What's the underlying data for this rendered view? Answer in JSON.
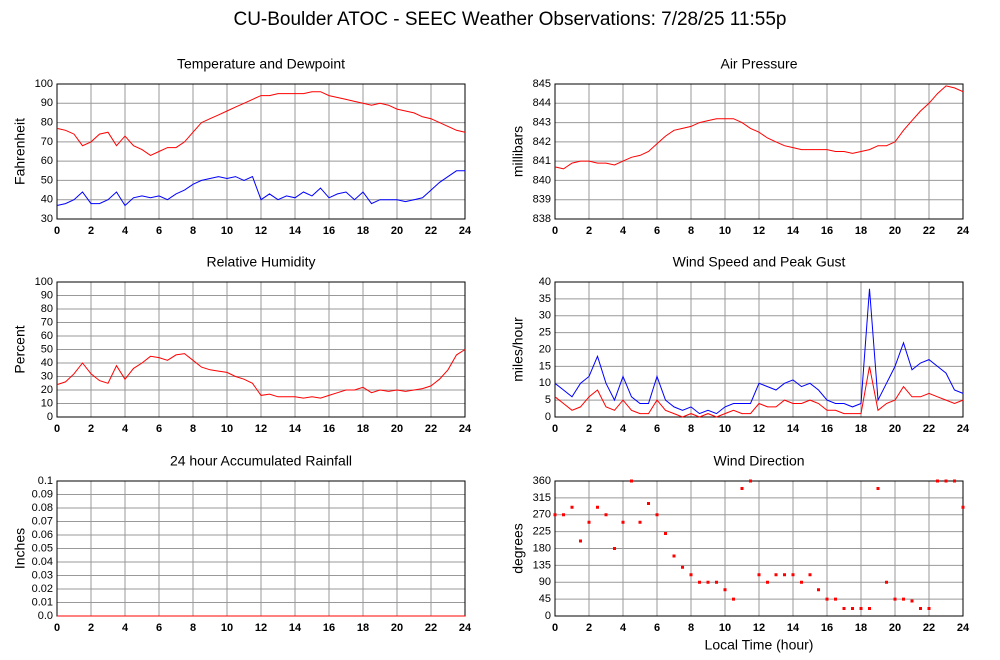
{
  "title": "CU-Boulder ATOC - SEEC Weather Observations: 7/28/25 11:55p",
  "chart_data": [
    {
      "type": "line",
      "title": "Temperature and Dewpoint",
      "ylabel": "Fahrenheit",
      "x": [
        0,
        0.5,
        1,
        1.5,
        2,
        2.5,
        3,
        3.5,
        4,
        4.5,
        5,
        5.5,
        6,
        6.5,
        7,
        7.5,
        8,
        8.5,
        9,
        9.5,
        10,
        10.5,
        11,
        11.5,
        12,
        12.5,
        13,
        13.5,
        14,
        14.5,
        15,
        15.5,
        16,
        16.5,
        17,
        17.5,
        18,
        18.5,
        19,
        19.5,
        20,
        20.5,
        21,
        21.5,
        22,
        22.5,
        23,
        23.5,
        24
      ],
      "xlim": [
        0,
        24
      ],
      "xticks": [
        0,
        2,
        4,
        6,
        8,
        10,
        12,
        14,
        16,
        18,
        20,
        22,
        24
      ],
      "ylim": [
        30,
        100
      ],
      "yticks": [
        30,
        40,
        50,
        60,
        70,
        80,
        90,
        100
      ],
      "grid": true,
      "series": [
        {
          "color": "#ff0000",
          "values": [
            77,
            76,
            74,
            68,
            70,
            74,
            75,
            68,
            73,
            68,
            66,
            63,
            65,
            67,
            67,
            70,
            75,
            80,
            82,
            84,
            86,
            88,
            90,
            92,
            94,
            94,
            95,
            95,
            95,
            95,
            96,
            96,
            94,
            93,
            92,
            91,
            90,
            89,
            90,
            89,
            87,
            86,
            85,
            83,
            82,
            80,
            78,
            76,
            75
          ]
        },
        {
          "color": "#0000ff",
          "values": [
            37,
            38,
            40,
            44,
            38,
            38,
            40,
            44,
            37,
            41,
            42,
            41,
            42,
            40,
            43,
            45,
            48,
            50,
            51,
            52,
            51,
            52,
            50,
            52,
            40,
            43,
            40,
            42,
            41,
            44,
            42,
            46,
            41,
            43,
            44,
            40,
            44,
            38,
            40,
            40,
            40,
            39,
            40,
            41,
            45,
            49,
            52,
            55,
            55
          ]
        }
      ]
    },
    {
      "type": "line",
      "title": "Air Pressure",
      "ylabel": "millibars",
      "x": [
        0,
        0.5,
        1,
        1.5,
        2,
        2.5,
        3,
        3.5,
        4,
        4.5,
        5,
        5.5,
        6,
        6.5,
        7,
        7.5,
        8,
        8.5,
        9,
        9.5,
        10,
        10.5,
        11,
        11.5,
        12,
        12.5,
        13,
        13.5,
        14,
        14.5,
        15,
        15.5,
        16,
        16.5,
        17,
        17.5,
        18,
        18.5,
        19,
        19.5,
        20,
        20.5,
        21,
        21.5,
        22,
        22.5,
        23,
        23.5,
        24
      ],
      "xlim": [
        0,
        24
      ],
      "xticks": [
        0,
        2,
        4,
        6,
        8,
        10,
        12,
        14,
        16,
        18,
        20,
        22,
        24
      ],
      "ylim": [
        838,
        845
      ],
      "yticks": [
        838,
        839,
        840,
        841,
        842,
        843,
        844,
        845
      ],
      "grid": true,
      "series": [
        {
          "color": "#ff0000",
          "values": [
            840.7,
            840.6,
            840.9,
            841,
            841,
            840.9,
            840.9,
            840.8,
            841,
            841.2,
            841.3,
            841.5,
            841.9,
            842.3,
            842.6,
            842.7,
            842.8,
            843,
            843.1,
            843.2,
            843.2,
            843.2,
            843,
            842.7,
            842.5,
            842.2,
            842,
            841.8,
            841.7,
            841.6,
            841.6,
            841.6,
            841.6,
            841.5,
            841.5,
            841.4,
            841.5,
            841.6,
            841.8,
            841.8,
            842,
            842.6,
            843.1,
            843.6,
            844,
            844.5,
            844.9,
            844.8,
            844.6
          ]
        }
      ]
    },
    {
      "type": "line",
      "title": "Relative Humidity",
      "ylabel": "Percent",
      "x": [
        0,
        0.5,
        1,
        1.5,
        2,
        2.5,
        3,
        3.5,
        4,
        4.5,
        5,
        5.5,
        6,
        6.5,
        7,
        7.5,
        8,
        8.5,
        9,
        9.5,
        10,
        10.5,
        11,
        11.5,
        12,
        12.5,
        13,
        13.5,
        14,
        14.5,
        15,
        15.5,
        16,
        16.5,
        17,
        17.5,
        18,
        18.5,
        19,
        19.5,
        20,
        20.5,
        21,
        21.5,
        22,
        22.5,
        23,
        23.5,
        24
      ],
      "xlim": [
        0,
        24
      ],
      "xticks": [
        0,
        2,
        4,
        6,
        8,
        10,
        12,
        14,
        16,
        18,
        20,
        22,
        24
      ],
      "ylim": [
        0,
        100
      ],
      "yticks": [
        0,
        10,
        20,
        30,
        40,
        50,
        60,
        70,
        80,
        90,
        100
      ],
      "grid": true,
      "series": [
        {
          "color": "#ff0000",
          "values": [
            24,
            26,
            32,
            40,
            32,
            27,
            25,
            38,
            28,
            36,
            40,
            45,
            44,
            42,
            46,
            47,
            42,
            37,
            35,
            34,
            33,
            30,
            28,
            25,
            16,
            17,
            15,
            15,
            15,
            14,
            15,
            14,
            16,
            18,
            20,
            20,
            22,
            18,
            20,
            19,
            20,
            19,
            20,
            21,
            23,
            28,
            35,
            46,
            50
          ]
        }
      ]
    },
    {
      "type": "line",
      "title": "Wind Speed and Peak Gust",
      "ylabel": "miles/hour",
      "x": [
        0,
        0.5,
        1,
        1.5,
        2,
        2.5,
        3,
        3.5,
        4,
        4.5,
        5,
        5.5,
        6,
        6.5,
        7,
        7.5,
        8,
        8.5,
        9,
        9.5,
        10,
        10.5,
        11,
        11.5,
        12,
        12.5,
        13,
        13.5,
        14,
        14.5,
        15,
        15.5,
        16,
        16.5,
        17,
        17.5,
        18,
        18.5,
        19,
        19.5,
        20,
        20.5,
        21,
        21.5,
        22,
        22.5,
        23,
        23.5,
        24
      ],
      "xlim": [
        0,
        24
      ],
      "xticks": [
        0,
        2,
        4,
        6,
        8,
        10,
        12,
        14,
        16,
        18,
        20,
        22,
        24
      ],
      "ylim": [
        0,
        40
      ],
      "yticks": [
        0,
        5,
        10,
        15,
        20,
        25,
        30,
        35,
        40
      ],
      "grid": true,
      "series": [
        {
          "color": "#0000ff",
          "values": [
            10,
            8,
            6,
            10,
            12,
            18,
            10,
            5,
            12,
            6,
            4,
            4,
            12,
            5,
            3,
            2,
            3,
            1,
            2,
            1,
            3,
            4,
            4,
            4,
            10,
            9,
            8,
            10,
            11,
            9,
            10,
            8,
            5,
            4,
            4,
            3,
            4,
            38,
            5,
            10,
            15,
            22,
            14,
            16,
            17,
            15,
            13,
            8,
            7
          ]
        },
        {
          "color": "#ff0000",
          "values": [
            6,
            4,
            2,
            3,
            6,
            8,
            3,
            2,
            5,
            2,
            1,
            1,
            5,
            2,
            1,
            0,
            1,
            0,
            1,
            0,
            1,
            2,
            1,
            1,
            4,
            3,
            3,
            5,
            4,
            4,
            5,
            4,
            2,
            2,
            1,
            1,
            1,
            15,
            2,
            4,
            5,
            9,
            6,
            6,
            7,
            6,
            5,
            4,
            5
          ]
        }
      ]
    },
    {
      "type": "line",
      "title": "24 hour Accumulated Rainfall",
      "ylabel": "Inches",
      "x": [
        0,
        0.5,
        1,
        1.5,
        2,
        2.5,
        3,
        3.5,
        4,
        4.5,
        5,
        5.5,
        6,
        6.5,
        7,
        7.5,
        8,
        8.5,
        9,
        9.5,
        10,
        10.5,
        11,
        11.5,
        12,
        12.5,
        13,
        13.5,
        14,
        14.5,
        15,
        15.5,
        16,
        16.5,
        17,
        17.5,
        18,
        18.5,
        19,
        19.5,
        20,
        20.5,
        21,
        21.5,
        22,
        22.5,
        23,
        23.5,
        24
      ],
      "xlim": [
        0,
        24
      ],
      "xticks": [
        0,
        2,
        4,
        6,
        8,
        10,
        12,
        14,
        16,
        18,
        20,
        22,
        24
      ],
      "ylim": [
        0,
        0.1
      ],
      "yticks": [
        {
          "value": 0,
          "label": "0.0"
        },
        0.01,
        0.02,
        0.03,
        0.04,
        0.05,
        0.06,
        0.07,
        0.08,
        0.09,
        0.1
      ],
      "grid": true,
      "series": [
        {
          "color": "#ff0000",
          "values": [
            0,
            0,
            0,
            0,
            0,
            0,
            0,
            0,
            0,
            0,
            0,
            0,
            0,
            0,
            0,
            0,
            0,
            0,
            0,
            0,
            0,
            0,
            0,
            0,
            0,
            0,
            0,
            0,
            0,
            0,
            0,
            0,
            0,
            0,
            0,
            0,
            0,
            0,
            0,
            0,
            0,
            0,
            0,
            0,
            0,
            0,
            0,
            0,
            0
          ]
        }
      ]
    },
    {
      "type": "scatter",
      "title": "Wind Direction",
      "ylabel": "degrees",
      "xlabel": "Local Time (hour)",
      "x": [
        0,
        0.5,
        1,
        1.5,
        2,
        2.5,
        3,
        3.5,
        4,
        4.5,
        5,
        5.5,
        6,
        6.5,
        7,
        7.5,
        8,
        8.5,
        9,
        9.5,
        10,
        10.5,
        11,
        11.5,
        12,
        12.5,
        13,
        13.5,
        14,
        14.5,
        15,
        15.5,
        16,
        16.5,
        17,
        17.5,
        18,
        18.5,
        19,
        19.5,
        20,
        20.5,
        21,
        21.5,
        22,
        22.5,
        23,
        23.5,
        24
      ],
      "xlim": [
        0,
        24
      ],
      "xticks": [
        0,
        2,
        4,
        6,
        8,
        10,
        12,
        14,
        16,
        18,
        20,
        22,
        24
      ],
      "ylim": [
        0,
        360
      ],
      "yticks": [
        0,
        45,
        90,
        135,
        180,
        225,
        270,
        315,
        360
      ],
      "grid": true,
      "series": [
        {
          "color": "#ff0000",
          "values": [
            270,
            270,
            290,
            200,
            250,
            290,
            270,
            180,
            250,
            360,
            250,
            300,
            270,
            220,
            160,
            130,
            110,
            90,
            90,
            90,
            70,
            45,
            340,
            360,
            110,
            90,
            110,
            110,
            110,
            90,
            110,
            70,
            45,
            45,
            20,
            20,
            20,
            20,
            340,
            90,
            45,
            45,
            40,
            20,
            20,
            360,
            360,
            360,
            290
          ]
        }
      ]
    }
  ]
}
